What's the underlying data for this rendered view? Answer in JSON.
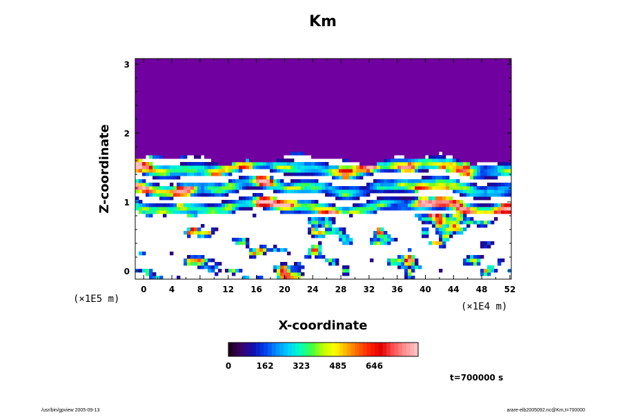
{
  "chart_data": {
    "type": "heatmap",
    "title": "Km",
    "xlabel": "X-coordinate",
    "ylabel": "Z-coordinate",
    "x_scale_label": "(×1E4 m)",
    "y_scale_label": "(×1E5 m)",
    "xlim": [
      -1.2,
      52.2
    ],
    "ylim": [
      -0.12,
      3.08
    ],
    "x_ticks": [
      "0",
      "4",
      "8",
      "12",
      "16",
      "20",
      "24",
      "28",
      "32",
      "36",
      "40",
      "44",
      "48",
      "52"
    ],
    "y_ticks": [
      "0",
      "1",
      "2",
      "3"
    ],
    "colorbar": {
      "min": 0,
      "max": 840,
      "ticks": [
        "0",
        "162",
        "323",
        "485",
        "646"
      ],
      "colors": [
        "#200020",
        "#3a0070",
        "#1010b0",
        "#0040f0",
        "#0090ff",
        "#00d0ff",
        "#00ffc0",
        "#40ff40",
        "#c0ff00",
        "#ffff00",
        "#ffb000",
        "#ff6000",
        "#ff2000",
        "#e00000",
        "#ff5050",
        "#ff9090",
        "#ffc0c0"
      ]
    },
    "fields": {
      "upper_value": 30,
      "upper_color": "#7000a0",
      "interface_z": 1.62
    },
    "time_label": "t=700000 s"
  },
  "footer": {
    "left": "/usr/bin/gpview 2005-09-13",
    "right": "arare-elb2005092.nc@Km,t=700000"
  }
}
